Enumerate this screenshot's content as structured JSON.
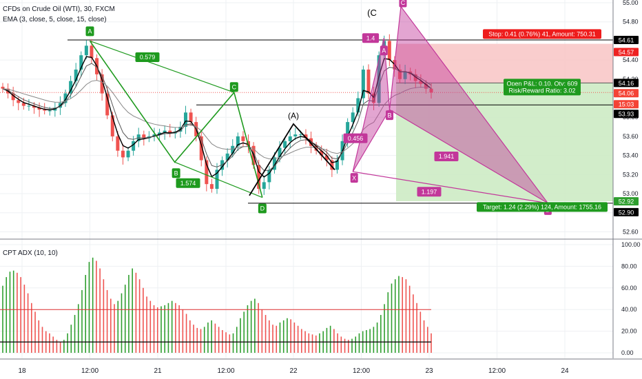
{
  "header": {
    "symbol_line": "CFDs on Crude Oil (WTI), 30, FXCM",
    "indicator_line": "EMA (3, close, 5, close, 15, close)"
  },
  "sub_panel": {
    "label": "CPT ADX (10, 10)",
    "y_ticks": [
      "100.00",
      "80.00",
      "60.00",
      "40.00",
      "20.00",
      "0.00"
    ]
  },
  "main_axis": {
    "y_ticks": [
      "55.00",
      "54.80",
      "54.40",
      "54.20",
      "53.80",
      "53.60",
      "53.40",
      "53.20",
      "53.00",
      "52.80",
      "52.60"
    ],
    "price_tags": [
      {
        "label": "54.61",
        "color": "#000000"
      },
      {
        "label": "54.57",
        "color": "#ee2222"
      },
      {
        "label": "54.16",
        "color": "#000000"
      },
      {
        "label": "54.06",
        "color": "#f44336"
      },
      {
        "label": "15:03",
        "color": "#f44336"
      },
      {
        "label": "53.93",
        "color": "#000000"
      },
      {
        "label": "52.92",
        "color": "#2e9e2e"
      },
      {
        "label": "52.90",
        "color": "#000000"
      }
    ]
  },
  "x_axis": {
    "labels": [
      "18",
      "12:00",
      "21",
      "12:00",
      "22",
      "12:00",
      "23",
      "12:00",
      "24"
    ]
  },
  "pattern_points": [
    {
      "label": "A",
      "color": "#1e9a1e"
    },
    {
      "label": "B",
      "color": "#1e9a1e"
    },
    {
      "label": "C",
      "color": "#1e9a1e"
    },
    {
      "label": "D",
      "color": "#1e9a1e"
    },
    {
      "label": "(A)",
      "color": "#000000"
    },
    {
      "label": "(C",
      "color": "#000000"
    },
    {
      "label": "X",
      "color": "#c2379a"
    },
    {
      "label": "A",
      "color": "#c2379a"
    },
    {
      "label": "B",
      "color": "#c2379a"
    },
    {
      "label": "C",
      "color": "#c2379a"
    },
    {
      "label": "D",
      "color": "#c2379a"
    }
  ],
  "ratio_labels": [
    {
      "label": "0.579",
      "color": "#1e9a1e"
    },
    {
      "label": "1.574",
      "color": "#1e9a1e"
    },
    {
      "label": "1.4",
      "color": "#c2379a"
    },
    {
      "label": "0.456",
      "color": "#c2379a"
    },
    {
      "label": "1.941",
      "color": "#c2379a"
    },
    {
      "label": "1.197",
      "color": "#c2379a"
    }
  ],
  "trade_boxes": {
    "stop_label": "Stop: 0.41 (0.76%) 41, Amount: 750.31",
    "open_pl_label": "Open P&L: 0.10, Qty: 609",
    "risk_reward_label": "Risk/Reward Ratio: 3.02",
    "target_label": "Target: 1.24 (2.29%) 124, Amount: 1755.16"
  },
  "colors": {
    "bull": "#26a69a",
    "bear": "#ef5350",
    "harmonic_green": "#1e9a1e",
    "harmonic_pink": "#c2379a",
    "stop_zone": "#f8c8c8",
    "target_zone": "#cdebc4",
    "adx_green": "#2e9e2e",
    "adx_red": "#ef5350"
  },
  "chart_data": [
    {
      "type": "line",
      "title": "CFDs on Crude Oil (WTI), 30, FXCM",
      "xlabel": "",
      "ylabel": "",
      "x_ticks": [
        "18",
        "12:00",
        "21",
        "12:00",
        "22",
        "12:00",
        "23",
        "12:00",
        "24"
      ],
      "ylim": [
        52.55,
        55.05
      ],
      "harmonic_abcd_1": [
        {
          "point": "A",
          "x": "18 12:00",
          "y": 54.6
        },
        {
          "point": "B",
          "x": "21 03:00",
          "y": 53.33
        },
        {
          "point": "C",
          "x": "21 13:30",
          "y": 54.06
        },
        {
          "point": "D",
          "x": "21 18:30",
          "y": 52.96
        }
      ],
      "wave_abc": [
        {
          "point": "(A)",
          "x": "22 00:00",
          "y": 53.73
        },
        {
          "point": "(C",
          "x": "22 17:30",
          "y": 54.96
        }
      ],
      "harmonic_xabcd": [
        {
          "point": "X",
          "x": "22 10:30",
          "y": 53.23
        },
        {
          "point": "A",
          "x": "22 16:00",
          "y": 54.63
        },
        {
          "point": "B",
          "x": "22 17:00",
          "y": 53.88
        },
        {
          "point": "C",
          "x": "22 19:00",
          "y": 54.96
        },
        {
          "point": "D",
          "x": "23 21:00",
          "y": 52.9
        }
      ],
      "ratios": {
        "AB/XA": 0.456,
        "XA": 1.4,
        "CD/BC": 1.941,
        "XD": 1.197,
        "abcd_BC": 0.579,
        "abcd_CD": 1.574
      },
      "levels": {
        "stop": 54.57,
        "entry": 54.16,
        "target": 52.92,
        "last_price": 54.06,
        "line_54_61": 54.61,
        "line_53_93": 53.93,
        "line_52_90": 52.9
      },
      "series": [
        {
          "name": "Close",
          "values": [
            54.1,
            54.05,
            53.98,
            53.95,
            53.92,
            53.92,
            53.9,
            53.88,
            53.87,
            53.87,
            53.9,
            53.95,
            54.05,
            54.18,
            54.3,
            54.45,
            54.55,
            54.42,
            54.25,
            54.05,
            53.82,
            53.6,
            53.45,
            53.38,
            53.45,
            53.55,
            53.62,
            53.58,
            53.6,
            53.62,
            53.64,
            53.66,
            53.63,
            53.65,
            53.7,
            53.85,
            53.75,
            53.6,
            53.35,
            53.1,
            53.05,
            53.25,
            53.35,
            53.42,
            53.5,
            53.6,
            53.55,
            53.5,
            53.3,
            53.05,
            53.12,
            53.25,
            53.38,
            53.48,
            53.55,
            53.6,
            53.62,
            53.62,
            53.58,
            53.5,
            53.45,
            53.4,
            53.35,
            53.25,
            53.35,
            53.55,
            53.75,
            53.85,
            54.0,
            54.3,
            54.05,
            53.95,
            54.45,
            54.6,
            54.4,
            54.3,
            54.2,
            54.28,
            54.25,
            54.18,
            54.15,
            54.1,
            54.06
          ]
        }
      ]
    },
    {
      "type": "bar",
      "title": "CPT ADX (10, 10)",
      "ylim": [
        0,
        100
      ],
      "threshold_lines": [
        40,
        10
      ],
      "series": [
        {
          "name": "CPT ADX (10, 10)",
          "values": [
            62,
            70,
            75,
            76,
            74,
            70,
            63,
            55,
            46,
            38,
            30,
            24,
            20,
            18,
            15,
            12,
            10,
            12,
            18,
            26,
            35,
            45,
            58,
            72,
            84,
            88,
            85,
            78,
            68,
            58,
            50,
            45,
            48,
            55,
            63,
            72,
            78,
            74,
            68,
            60,
            52,
            48,
            44,
            42,
            43,
            44,
            46,
            48,
            46,
            44,
            40,
            36,
            30,
            26,
            23,
            22,
            24,
            28,
            30,
            27,
            24,
            21,
            19,
            17,
            18,
            24,
            32,
            38,
            44,
            48,
            50,
            46,
            40,
            35,
            30,
            26,
            25,
            28,
            30,
            32,
            31,
            28,
            25,
            22,
            20,
            18,
            17,
            16,
            18,
            20,
            23,
            25,
            22,
            18,
            15,
            13,
            12,
            13,
            15,
            18,
            20,
            21,
            22,
            24,
            28,
            35,
            45,
            56,
            64,
            68,
            71,
            70,
            68,
            62,
            54,
            46,
            38,
            30,
            24,
            18
          ]
        }
      ]
    }
  ]
}
